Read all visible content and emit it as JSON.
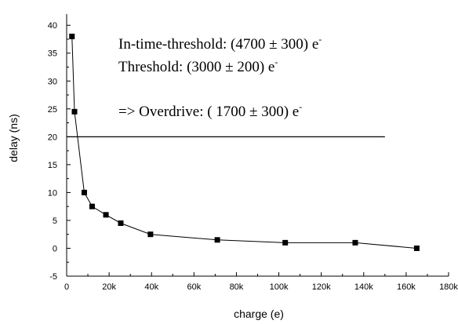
{
  "chart_data": {
    "type": "line",
    "xlabel": "charge (e)",
    "ylabel": "delay (ns)",
    "xlim": [
      0,
      180000
    ],
    "ylim": [
      -5,
      42
    ],
    "x_ticks": [
      0,
      20000,
      40000,
      60000,
      80000,
      100000,
      120000,
      140000,
      160000,
      180000
    ],
    "x_tick_labels": [
      "0",
      "20k",
      "40k",
      "60k",
      "80k",
      "100k",
      "120k",
      "140k",
      "160k",
      "180k"
    ],
    "y_ticks": [
      -5,
      0,
      5,
      10,
      15,
      20,
      25,
      30,
      35,
      40
    ],
    "y_tick_labels": [
      "-5",
      "0",
      "5",
      "10",
      "15",
      "20",
      "25",
      "30",
      "35",
      "40"
    ],
    "grid": false,
    "series": [
      {
        "marker": "square",
        "color": "#000000",
        "points": [
          {
            "x": 2500,
            "y": 38.0
          },
          {
            "x": 3700,
            "y": 24.5
          },
          {
            "x": 8300,
            "y": 10.0
          },
          {
            "x": 12000,
            "y": 7.5
          },
          {
            "x": 18500,
            "y": 6.0
          },
          {
            "x": 25500,
            "y": 4.5
          },
          {
            "x": 39500,
            "y": 2.5
          },
          {
            "x": 71000,
            "y": 1.5
          },
          {
            "x": 103000,
            "y": 1.0
          },
          {
            "x": 136000,
            "y": 1.0
          },
          {
            "x": 165000,
            "y": 0.0
          }
        ]
      }
    ],
    "reference_line": {
      "y": 20,
      "x_from": 0,
      "x_to": 150000
    },
    "annotations": [
      {
        "main": "In-time-threshold: (4700 ±  300) e",
        "sup": "-"
      },
      {
        "main": "Threshold: (3000 ±  200) e",
        "sup": "-"
      },
      {
        "main": "=> Overdrive: ( 1700 ±  300) e",
        "sup": "-"
      }
    ]
  }
}
